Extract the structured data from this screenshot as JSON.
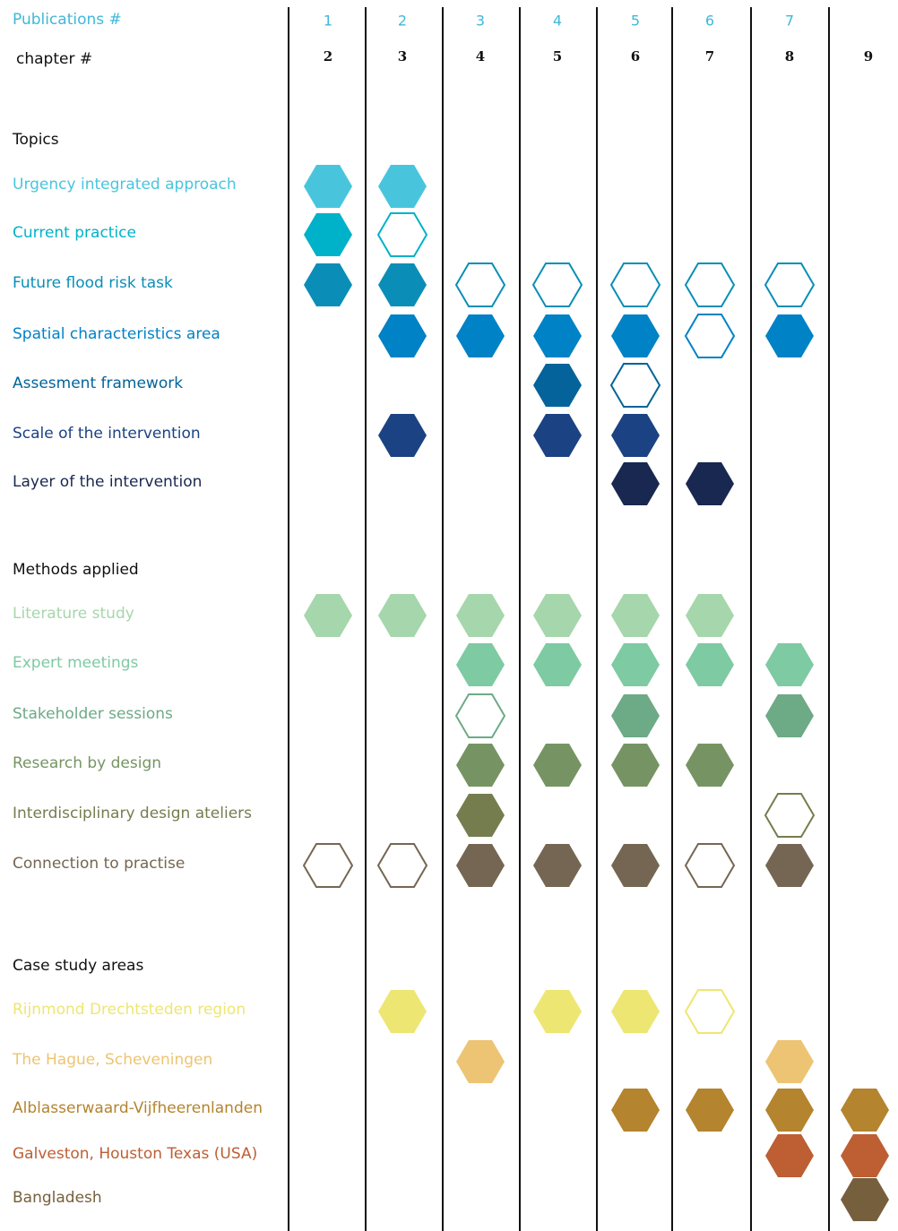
{
  "header": {
    "publications_title": "Publications #",
    "chapter_title": "chapter #",
    "publications": [
      1,
      2,
      3,
      4,
      5,
      6,
      7
    ],
    "chapters": [
      2,
      3,
      4,
      5,
      6,
      7,
      8,
      9
    ]
  },
  "sections": [
    {
      "title": "Topics",
      "rows": [
        {
          "label": "Urgency integrated approach",
          "color": "#48c5dd",
          "cells": [
            "filled",
            "filled",
            null,
            null,
            null,
            null,
            null,
            null
          ]
        },
        {
          "label": "Current practice",
          "color": "#00b2c9",
          "cells": [
            "filled",
            "outline",
            null,
            null,
            null,
            null,
            null,
            null
          ]
        },
        {
          "label": "Future flood risk task",
          "color": "#0a8eb7",
          "cells": [
            "filled",
            "filled",
            "outline",
            "outline",
            "outline",
            "outline",
            "outline",
            null
          ]
        },
        {
          "label": "Spatial characteristics area",
          "color": "#0082c6",
          "cells": [
            null,
            "filled",
            "filled",
            "filled",
            "filled",
            "outline",
            "filled",
            null
          ]
        },
        {
          "label": "Assesment framework",
          "color": "#03639a",
          "cells": [
            null,
            null,
            null,
            "filled",
            "outline",
            null,
            null,
            null
          ]
        },
        {
          "label": "Scale of the intervention",
          "color": "#1b4282",
          "cells": [
            null,
            "filled",
            null,
            "filled",
            "filled",
            null,
            null,
            null
          ]
        },
        {
          "label": "Layer of the intervention",
          "color": "#192850",
          "cells": [
            null,
            null,
            null,
            null,
            "filled",
            "filled",
            null,
            null
          ]
        }
      ]
    },
    {
      "title": "Methods applied",
      "rows": [
        {
          "label": "Literature study",
          "color": "#a6d6ab",
          "cells": [
            "filled",
            "filled",
            "filled",
            "filled",
            "filled",
            "filled",
            null,
            null
          ]
        },
        {
          "label": "Expert meetings",
          "color": "#7ecaa2",
          "cells": [
            null,
            null,
            "filled",
            "filled",
            "filled",
            "filled",
            "filled",
            null
          ]
        },
        {
          "label": "Stakeholder sessions",
          "color": "#6daa86",
          "cells": [
            null,
            null,
            "outline",
            null,
            "filled",
            null,
            "filled",
            null
          ]
        },
        {
          "label": "Research by design",
          "color": "#769463",
          "cells": [
            null,
            null,
            "filled",
            "filled",
            "filled",
            "filled",
            null,
            null
          ]
        },
        {
          "label": "Interdisciplinary design ateliers",
          "color": "#757d4e",
          "cells": [
            null,
            null,
            "filled",
            null,
            null,
            null,
            "outline",
            null
          ]
        },
        {
          "label": "Connection to practise",
          "color": "#746652",
          "cells": [
            "outline",
            "outline",
            "filled",
            "filled",
            "filled",
            "outline",
            "filled",
            null
          ]
        }
      ]
    },
    {
      "title": "Case study areas",
      "rows": [
        {
          "label": "Rijnmond Drechtsteden region",
          "color": "#ede672",
          "cells": [
            null,
            "filled",
            null,
            "filled",
            "filled",
            "outline",
            null,
            null
          ]
        },
        {
          "label": "The Hague, Scheveningen",
          "color": "#edc474",
          "cells": [
            null,
            null,
            "filled",
            null,
            null,
            null,
            "filled",
            null
          ]
        },
        {
          "label": "Alblasserwaard-Vijfheerenlanden",
          "color": "#b4842e",
          "cells": [
            null,
            null,
            null,
            null,
            "filled",
            "filled",
            "filled",
            "filled"
          ]
        },
        {
          "label": "Galveston, Houston Texas (USA)",
          "color": "#bd5e33",
          "cells": [
            null,
            null,
            null,
            null,
            null,
            null,
            "filled",
            "filled"
          ]
        },
        {
          "label": "Bangladesh",
          "color": "#765f3c",
          "cells": [
            null,
            null,
            null,
            null,
            null,
            null,
            null,
            "filled"
          ]
        }
      ]
    }
  ]
}
